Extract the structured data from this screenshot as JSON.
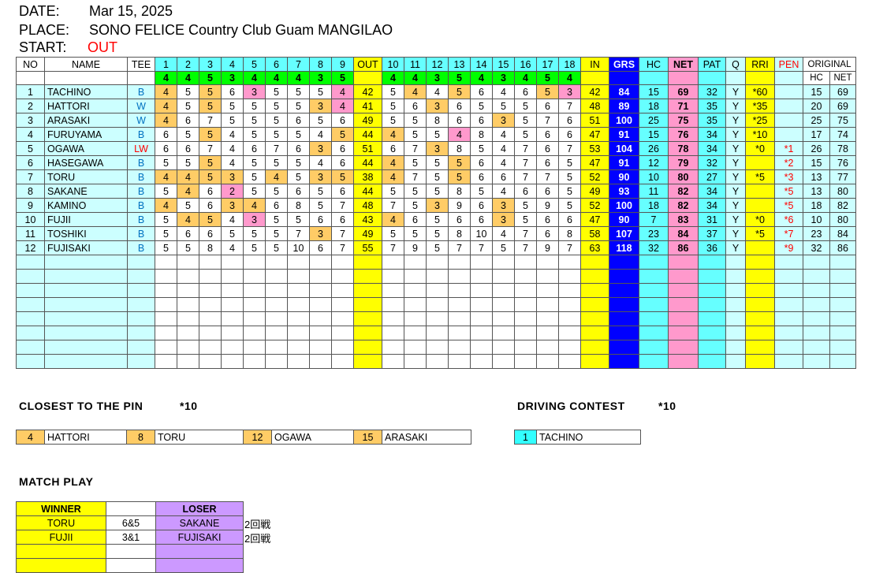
{
  "header": {
    "date_label": "DATE:",
    "date": "Mar 15, 2025",
    "place_label": "PLACE:",
    "place": "SONO FELICE Country Club Guam MANGILAO",
    "start_label": "START:",
    "start": "OUT"
  },
  "scorecard": {
    "columns": [
      "NO",
      "NAME",
      "TEE",
      1,
      2,
      3,
      4,
      5,
      6,
      7,
      8,
      9,
      "OUT",
      10,
      11,
      12,
      13,
      14,
      15,
      16,
      17,
      18,
      "IN",
      "GRS",
      "HC",
      "NET",
      "PAT",
      "Q",
      "RRI",
      "PEN",
      "ORIGINAL"
    ],
    "original_sub": [
      "HC",
      "NET"
    ],
    "par": [
      4,
      4,
      5,
      3,
      4,
      4,
      4,
      3,
      5,
      4,
      4,
      3,
      5,
      4,
      3,
      4,
      5,
      4
    ],
    "rows": [
      {
        "no": 1,
        "name": "TACHINO",
        "tee": "B",
        "scores": [
          4,
          5,
          5,
          6,
          3,
          5,
          5,
          5,
          4,
          5,
          4,
          4,
          5,
          6,
          4,
          6,
          5,
          3
        ],
        "out": 42,
        "in": 42,
        "grs": 84,
        "hc": 15,
        "net": 69,
        "pat": 32,
        "q": "Y",
        "rri": "*60",
        "pen": null,
        "orig_hc": 15,
        "orig_net": 69
      },
      {
        "no": 2,
        "name": "HATTORI",
        "tee": "W",
        "scores": [
          4,
          5,
          5,
          5,
          5,
          5,
          5,
          3,
          4,
          5,
          6,
          3,
          6,
          5,
          5,
          5,
          6,
          7
        ],
        "out": 41,
        "in": 48,
        "grs": 89,
        "hc": 18,
        "net": 71,
        "pat": 35,
        "q": "Y",
        "rri": "*35",
        "pen": null,
        "orig_hc": 20,
        "orig_net": 69
      },
      {
        "no": 3,
        "name": "ARASAKI",
        "tee": "W",
        "scores": [
          4,
          6,
          7,
          5,
          5,
          5,
          6,
          5,
          6,
          5,
          5,
          8,
          6,
          6,
          3,
          5,
          7,
          6
        ],
        "out": 49,
        "in": 51,
        "grs": 100,
        "hc": 25,
        "net": 75,
        "pat": 35,
        "q": "Y",
        "rri": "*25",
        "pen": null,
        "orig_hc": 25,
        "orig_net": 75
      },
      {
        "no": 4,
        "name": "FURUYAMA",
        "tee": "B",
        "scores": [
          6,
          5,
          5,
          4,
          5,
          5,
          5,
          4,
          5,
          4,
          5,
          5,
          4,
          8,
          4,
          5,
          6,
          6
        ],
        "out": 44,
        "in": 47,
        "grs": 91,
        "hc": 15,
        "net": 76,
        "pat": 34,
        "q": "Y",
        "rri": "*10",
        "pen": null,
        "orig_hc": 17,
        "orig_net": 74
      },
      {
        "no": 5,
        "name": "OGAWA",
        "tee": "LW",
        "scores": [
          6,
          6,
          7,
          4,
          6,
          7,
          6,
          3,
          6,
          6,
          7,
          3,
          8,
          5,
          4,
          7,
          6,
          7
        ],
        "out": 51,
        "in": 53,
        "grs": 104,
        "hc": 26,
        "net": 78,
        "pat": 34,
        "q": "Y",
        "rri": "*0",
        "pen": "*1",
        "orig_hc": 26,
        "orig_net": 78
      },
      {
        "no": 6,
        "name": "HASEGAWA",
        "tee": "B",
        "scores": [
          5,
          5,
          5,
          4,
          5,
          5,
          5,
          4,
          6,
          4,
          5,
          5,
          5,
          6,
          4,
          7,
          6,
          5
        ],
        "out": 44,
        "in": 47,
        "grs": 91,
        "hc": 12,
        "net": 79,
        "pat": 32,
        "q": "Y",
        "rri": null,
        "pen": "*2",
        "orig_hc": 15,
        "orig_net": 76
      },
      {
        "no": 7,
        "name": "TORU",
        "tee": "B",
        "scores": [
          4,
          4,
          5,
          3,
          5,
          4,
          5,
          3,
          5,
          4,
          7,
          5,
          5,
          6,
          6,
          7,
          7,
          5
        ],
        "out": 38,
        "in": 52,
        "grs": 90,
        "hc": 10,
        "net": 80,
        "pat": 27,
        "q": "Y",
        "rri": "*5",
        "pen": "*3",
        "orig_hc": 13,
        "orig_net": 77
      },
      {
        "no": 8,
        "name": "SAKANE",
        "tee": "B",
        "scores": [
          5,
          4,
          6,
          2,
          5,
          5,
          6,
          5,
          6,
          5,
          5,
          5,
          8,
          5,
          4,
          6,
          6,
          5
        ],
        "out": 44,
        "in": 49,
        "grs": 93,
        "hc": 11,
        "net": 82,
        "pat": 34,
        "q": "Y",
        "rri": null,
        "pen": "*5",
        "orig_hc": 13,
        "orig_net": 80
      },
      {
        "no": 9,
        "name": "KAMINO",
        "tee": "B",
        "scores": [
          4,
          5,
          6,
          3,
          4,
          6,
          8,
          5,
          7,
          7,
          5,
          3,
          9,
          6,
          3,
          5,
          9,
          5
        ],
        "out": 48,
        "in": 52,
        "grs": 100,
        "hc": 18,
        "net": 82,
        "pat": 34,
        "q": "Y",
        "rri": null,
        "pen": "*5",
        "orig_hc": 18,
        "orig_net": 82
      },
      {
        "no": 10,
        "name": "FUJII",
        "tee": "B",
        "scores": [
          5,
          4,
          5,
          4,
          3,
          5,
          5,
          6,
          6,
          4,
          6,
          5,
          6,
          6,
          3,
          5,
          6,
          6
        ],
        "out": 43,
        "in": 47,
        "grs": 90,
        "hc": 7,
        "net": 83,
        "pat": 31,
        "q": "Y",
        "rri": "*0",
        "pen": "*6",
        "orig_hc": 10,
        "orig_net": 80
      },
      {
        "no": 11,
        "name": "TOSHIKI",
        "tee": "B",
        "scores": [
          5,
          6,
          6,
          5,
          5,
          5,
          7,
          3,
          7,
          5,
          5,
          5,
          8,
          10,
          4,
          7,
          6,
          8
        ],
        "out": 49,
        "in": 58,
        "grs": 107,
        "hc": 23,
        "net": 84,
        "pat": 37,
        "q": "Y",
        "rri": "*5",
        "pen": "*7",
        "orig_hc": 23,
        "orig_net": 84
      },
      {
        "no": 12,
        "name": "FUJISAKI",
        "tee": "B",
        "scores": [
          5,
          5,
          8,
          4,
          5,
          5,
          10,
          6,
          7,
          7,
          9,
          5,
          7,
          7,
          5,
          7,
          9,
          7
        ],
        "out": 55,
        "in": 63,
        "grs": 118,
        "hc": 32,
        "net": 86,
        "pat": 36,
        "q": "Y",
        "rri": null,
        "pen": "*9",
        "orig_hc": 32,
        "orig_net": 86
      }
    ]
  },
  "closest_to_pin": {
    "title": "CLOSEST TO THE PIN",
    "note": "*10",
    "entries": [
      {
        "hole": 4,
        "name": "HATTORI"
      },
      {
        "hole": 8,
        "name": "TORU"
      },
      {
        "hole": 12,
        "name": "OGAWA"
      },
      {
        "hole": 15,
        "name": "ARASAKI"
      }
    ]
  },
  "driving_contest": {
    "title": "DRIVING CONTEST",
    "note": "*10",
    "entries": [
      {
        "hole": 1,
        "name": "TACHINO"
      }
    ]
  },
  "match_play": {
    "title": "MATCH PLAY",
    "headers": [
      "WINNER",
      "LOSER"
    ],
    "rows": [
      {
        "winner": "TORU",
        "score": "6&5",
        "loser": "SAKANE",
        "round": "2回戦"
      },
      {
        "winner": "FUJII",
        "score": "3&1",
        "loser": "FUJISAKI",
        "round": "2回戦"
      }
    ]
  }
}
